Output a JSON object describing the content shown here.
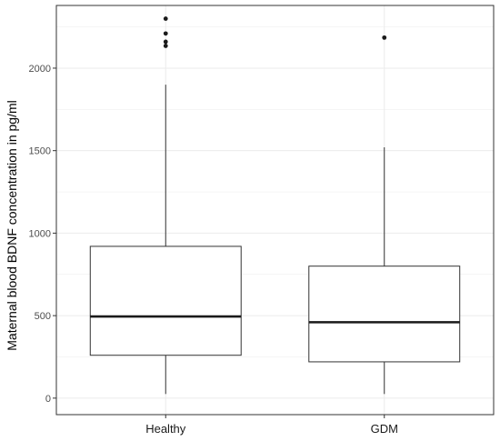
{
  "chart_data": {
    "type": "boxplot",
    "ylabel": "Maternal blood BDNF concentration in pg/ml",
    "xlabel": "",
    "ylim": [
      -100,
      2380
    ],
    "y_ticks": [
      0,
      500,
      1000,
      1500,
      2000
    ],
    "grid": true,
    "legend": "none",
    "categories": [
      "Healthy",
      "GDM"
    ],
    "boxes": [
      {
        "category": "Healthy",
        "whisker_low": 25,
        "q1": 260,
        "median": 495,
        "q3": 920,
        "whisker_high": 1900,
        "outliers": [
          2300,
          2210,
          2160,
          2135
        ]
      },
      {
        "category": "GDM",
        "whisker_low": 25,
        "q1": 220,
        "median": 460,
        "q3": 800,
        "whisker_high": 1520,
        "outliers": [
          2185
        ]
      }
    ]
  },
  "colors": {
    "box_fill": "#ffffff",
    "box_stroke": "#333333",
    "median": "#1a1a1a",
    "grid": "#ebebeb",
    "panel_border": "#333333"
  }
}
